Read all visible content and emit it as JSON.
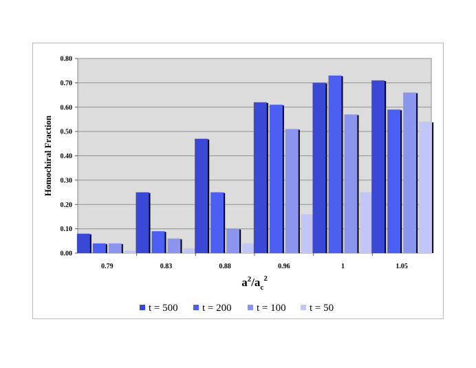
{
  "chart_data": {
    "type": "bar",
    "title": "",
    "xlabel": {
      "base": "a",
      "sup1": "2",
      "slash": "/a",
      "sub": "c",
      "sup2": "2"
    },
    "ylabel": "Homochiral Fraction",
    "ylim": [
      0,
      0.8
    ],
    "yticks": [
      "0.00",
      "0.10",
      "0.20",
      "0.30",
      "0.40",
      "0.50",
      "0.60",
      "0.70",
      "0.80"
    ],
    "categories": [
      "0.79",
      "0.83",
      "0.88",
      "0.96",
      "1",
      "1.05"
    ],
    "series": [
      {
        "name": "t = 500",
        "values": [
          0.08,
          0.25,
          0.47,
          0.62,
          0.7,
          0.71
        ]
      },
      {
        "name": "t = 200",
        "values": [
          0.04,
          0.09,
          0.25,
          0.61,
          0.73,
          0.59
        ]
      },
      {
        "name": "t = 100",
        "values": [
          0.04,
          0.06,
          0.1,
          0.51,
          0.57,
          0.66
        ]
      },
      {
        "name": "t = 50",
        "values": [
          0.01,
          0.02,
          0.04,
          0.16,
          0.25,
          0.54
        ]
      }
    ],
    "colors": [
      "#3a48d6",
      "#4d5ff2",
      "#8c95ee",
      "#c1c6f6"
    ],
    "grid": true,
    "legend": "bottom"
  }
}
